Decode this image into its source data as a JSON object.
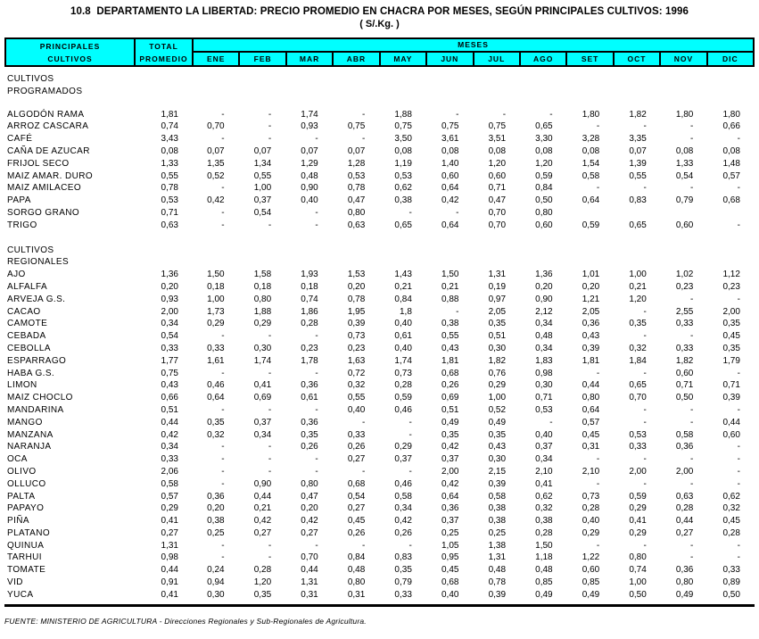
{
  "title": "10.8  DEPARTAMENTO LA LIBERTAD: PRECIO PROMEDIO EN CHACRA POR MESES, SEGÚN PRINCIPALES CULTIVOS: 1996",
  "subtitle": "( S/.Kg. )",
  "colors": {
    "header_bg": "#00FFFF",
    "border": "#000000",
    "text": "#000000"
  },
  "header": {
    "col1": [
      "PRINCIPALES",
      "CULTIVOS"
    ],
    "col2": [
      "TOTAL",
      "PROMEDIO"
    ],
    "meses_label": "MESES",
    "months": [
      "ENE",
      "FEB",
      "MAR",
      "ABR",
      "MAY",
      "JUN",
      "JUL",
      "AGO",
      "SET",
      "OCT",
      "NOV",
      "DIC"
    ]
  },
  "rows": [
    {
      "type": "section",
      "label": "CULTIVOS"
    },
    {
      "type": "section",
      "label": "PROGRAMADOS"
    },
    {
      "type": "spacer",
      "size": "sm"
    },
    {
      "type": "data",
      "label": "ALGODÓN RAMA",
      "total": "1,81",
      "months": [
        "-",
        "-",
        "1,74",
        "-",
        "1,88",
        "-",
        "-",
        "-",
        "1,80",
        "1,82",
        "1,80",
        "1,80"
      ]
    },
    {
      "type": "data",
      "label": "ARROZ CASCARA",
      "total": "0,74",
      "months": [
        "0,70",
        "-",
        "0,93",
        "0,75",
        "0,75",
        "0,75",
        "0,75",
        "0,65",
        "-",
        "-",
        "-",
        "0,66"
      ]
    },
    {
      "type": "data",
      "label": "CAFÉ",
      "total": "3,43",
      "months": [
        "-",
        "-",
        "-",
        "-",
        "3,50",
        "3,61",
        "3,51",
        "3,30",
        "3,28",
        "3,35",
        "-",
        "-"
      ]
    },
    {
      "type": "data",
      "label": "CAÑA DE AZUCAR",
      "total": "0,08",
      "months": [
        "0,07",
        "0,07",
        "0,07",
        "0,07",
        "0,08",
        "0,08",
        "0,08",
        "0,08",
        "0,08",
        "0,07",
        "0,08",
        "0,08"
      ]
    },
    {
      "type": "data",
      "label": "FRIJOL SECO",
      "total": "1,33",
      "months": [
        "1,35",
        "1,34",
        "1,29",
        "1,28",
        "1,19",
        "1,40",
        "1,20",
        "1,20",
        "1,54",
        "1,39",
        "1,33",
        "1,48"
      ]
    },
    {
      "type": "data",
      "label": "MAIZ AMAR. DURO",
      "total": "0,55",
      "months": [
        "0,52",
        "0,55",
        "0,48",
        "0,53",
        "0,53",
        "0,60",
        "0,60",
        "0,59",
        "0,58",
        "0,55",
        "0,54",
        "0,57"
      ]
    },
    {
      "type": "data",
      "label": "MAIZ AMILACEO",
      "total": "0,78",
      "months": [
        "-",
        "1,00",
        "0,90",
        "0,78",
        "0,62",
        "0,64",
        "0,71",
        "0,84",
        "-",
        "-",
        "-",
        "-"
      ]
    },
    {
      "type": "data",
      "label": "PAPA",
      "total": "0,53",
      "months": [
        "0,42",
        "0,37",
        "0,40",
        "0,47",
        "0,38",
        "0,42",
        "0,47",
        "0,50",
        "0,64",
        "0,83",
        "0,79",
        "0,68"
      ]
    },
    {
      "type": "data",
      "label": "SORGO GRANO",
      "total": "0,71",
      "months": [
        "-",
        "0,54",
        "-",
        "0,80",
        "-",
        "-",
        "0,70",
        "0,80",
        "",
        "",
        "",
        ""
      ]
    },
    {
      "type": "data",
      "label": "TRIGO",
      "total": "0,63",
      "months": [
        "-",
        "-",
        "-",
        "0,63",
        "0,65",
        "0,64",
        "0,70",
        "0,60",
        "0,59",
        "0,65",
        "0,60",
        "-"
      ]
    },
    {
      "type": "spacer",
      "size": "lg"
    },
    {
      "type": "section",
      "label": "CULTIVOS"
    },
    {
      "type": "section",
      "label": "REGIONALES"
    },
    {
      "type": "data",
      "label": "AJO",
      "total": "1,36",
      "months": [
        "1,50",
        "1,58",
        "1,93",
        "1,53",
        "1,43",
        "1,50",
        "1,31",
        "1,36",
        "1,01",
        "1,00",
        "1,02",
        "1,12"
      ]
    },
    {
      "type": "data",
      "label": "ALFALFA",
      "total": "0,20",
      "months": [
        "0,18",
        "0,18",
        "0,18",
        "0,20",
        "0,21",
        "0,21",
        "0,19",
        "0,20",
        "0,20",
        "0,21",
        "0,23",
        "0,23"
      ]
    },
    {
      "type": "data",
      "label": "ARVEJA G.S.",
      "total": "0,93",
      "months": [
        "1,00",
        "0,80",
        "0,74",
        "0,78",
        "0,84",
        "0,88",
        "0,97",
        "0,90",
        "1,21",
        "1,20",
        "-",
        "-"
      ]
    },
    {
      "type": "data",
      "label": "CACAO",
      "total": "2,00",
      "months": [
        "1,73",
        "1,88",
        "1,86",
        "1,95",
        "1,8",
        "-",
        "2,05",
        "2,12",
        "2,05",
        "-",
        "2,55",
        "2,00"
      ]
    },
    {
      "type": "data",
      "label": "CAMOTE",
      "total": "0,34",
      "months": [
        "0,29",
        "0,29",
        "0,28",
        "0,39",
        "0,40",
        "0,38",
        "0,35",
        "0,34",
        "0,36",
        "0,35",
        "0,33",
        "0,35"
      ]
    },
    {
      "type": "data",
      "label": "CEBADA",
      "total": "0,54",
      "months": [
        "-",
        "-",
        "-",
        "0,73",
        "0,61",
        "0,55",
        "0,51",
        "0,48",
        "0,43",
        "-",
        "-",
        "0,45"
      ]
    },
    {
      "type": "data",
      "label": "CEBOLLA",
      "total": "0,33",
      "months": [
        "0,33",
        "0,30",
        "0,23",
        "0,23",
        "0,40",
        "0,43",
        "0,30",
        "0,34",
        "0,39",
        "0,32",
        "0,33",
        "0,35"
      ]
    },
    {
      "type": "data",
      "label": "ESPARRAGO",
      "total": "1,77",
      "months": [
        "1,61",
        "1,74",
        "1,78",
        "1,63",
        "1,74",
        "1,81",
        "1,82",
        "1,83",
        "1,81",
        "1,84",
        "1,82",
        "1,79"
      ]
    },
    {
      "type": "data",
      "label": "HABA G.S.",
      "total": "0,75",
      "months": [
        "-",
        "-",
        "-",
        "0,72",
        "0,73",
        "0,68",
        "0,76",
        "0,98",
        "-",
        "-",
        "0,60",
        "-"
      ]
    },
    {
      "type": "data",
      "label": "LIMON",
      "total": "0,43",
      "months": [
        "0,46",
        "0,41",
        "0,36",
        "0,32",
        "0,28",
        "0,26",
        "0,29",
        "0,30",
        "0,44",
        "0,65",
        "0,71",
        "0,71"
      ]
    },
    {
      "type": "data",
      "label": "MAIZ CHOCLO",
      "total": "0,66",
      "months": [
        "0,64",
        "0,69",
        "0,61",
        "0,55",
        "0,59",
        "0,69",
        "1,00",
        "0,71",
        "0,80",
        "0,70",
        "0,50",
        "0,39"
      ]
    },
    {
      "type": "data",
      "label": "MANDARINA",
      "total": "0,51",
      "months": [
        "-",
        "-",
        "-",
        "0,40",
        "0,46",
        "0,51",
        "0,52",
        "0,53",
        "0,64",
        "-",
        "-",
        "-"
      ]
    },
    {
      "type": "data",
      "label": "MANGO",
      "total": "0,44",
      "months": [
        "0,35",
        "0,37",
        "0,36",
        "-",
        "-",
        "0,49",
        "0,49",
        "-",
        "0,57",
        "-",
        "-",
        "0,44"
      ]
    },
    {
      "type": "data",
      "label": "MANZANA",
      "total": "0,42",
      "months": [
        "0,32",
        "0,34",
        "0,35",
        "0,33",
        "-",
        "0,35",
        "0,35",
        "0,40",
        "0,45",
        "0,53",
        "0,58",
        "0,60"
      ]
    },
    {
      "type": "data",
      "label": "NARANJA",
      "total": "0,34",
      "months": [
        "-",
        "-",
        "0,26",
        "0,26",
        "0,29",
        "0,42",
        "0,43",
        "0,37",
        "0,31",
        "0,33",
        "0,36",
        "-"
      ]
    },
    {
      "type": "data",
      "label": "OCA",
      "total": "0,33",
      "months": [
        "-",
        "-",
        "-",
        "0,27",
        "0,37",
        "0,37",
        "0,30",
        "0,34",
        "-",
        "-",
        "-",
        "-"
      ]
    },
    {
      "type": "data",
      "label": "OLIVO",
      "total": "2,06",
      "months": [
        "-",
        "-",
        "-",
        "-",
        "-",
        "2,00",
        "2,15",
        "2,10",
        "2,10",
        "2,00",
        "2,00",
        "-"
      ]
    },
    {
      "type": "data",
      "label": "OLLUCO",
      "total": "0,58",
      "months": [
        "-",
        "0,90",
        "0,80",
        "0,68",
        "0,46",
        "0,42",
        "0,39",
        "0,41",
        "-",
        "-",
        "-",
        "-"
      ]
    },
    {
      "type": "data",
      "label": "PALTA",
      "total": "0,57",
      "months": [
        "0,36",
        "0,44",
        "0,47",
        "0,54",
        "0,58",
        "0,64",
        "0,58",
        "0,62",
        "0,73",
        "0,59",
        "0,63",
        "0,62"
      ]
    },
    {
      "type": "data",
      "label": "PAPAYO",
      "total": "0,29",
      "months": [
        "0,20",
        "0,21",
        "0,20",
        "0,27",
        "0,34",
        "0,36",
        "0,38",
        "0,32",
        "0,28",
        "0,29",
        "0,28",
        "0,32"
      ]
    },
    {
      "type": "data",
      "label": "PIÑA",
      "total": "0,41",
      "months": [
        "0,38",
        "0,42",
        "0,42",
        "0,45",
        "0,42",
        "0,37",
        "0,38",
        "0,38",
        "0,40",
        "0,41",
        "0,44",
        "0,45"
      ]
    },
    {
      "type": "data",
      "label": "PLATANO",
      "total": "0,27",
      "months": [
        "0,25",
        "0,27",
        "0,27",
        "0,26",
        "0,26",
        "0,25",
        "0,25",
        "0,28",
        "0,29",
        "0,29",
        "0,27",
        "0,28"
      ]
    },
    {
      "type": "data",
      "label": "QUINUA",
      "total": "1,31",
      "months": [
        "-",
        "-",
        "-",
        "-",
        "-",
        "1,05",
        "1,38",
        "1,50",
        "-",
        "-",
        "-",
        "-"
      ]
    },
    {
      "type": "data",
      "label": "TARHUI",
      "total": "0,98",
      "months": [
        "-",
        "-",
        "0,70",
        "0,84",
        "0,83",
        "0,95",
        "1,31",
        "1,18",
        "1,22",
        "0,80",
        "-",
        "-"
      ]
    },
    {
      "type": "data",
      "label": "TOMATE",
      "total": "0,44",
      "months": [
        "0,24",
        "0,28",
        "0,44",
        "0,48",
        "0,35",
        "0,45",
        "0,48",
        "0,48",
        "0,60",
        "0,74",
        "0,36",
        "0,33"
      ]
    },
    {
      "type": "data",
      "label": "VID",
      "total": "0,91",
      "months": [
        "0,94",
        "1,20",
        "1,31",
        "0,80",
        "0,79",
        "0,68",
        "0,78",
        "0,85",
        "0,85",
        "1,00",
        "0,80",
        "0,89"
      ]
    },
    {
      "type": "data",
      "label": "YUCA",
      "total": "0,41",
      "months": [
        "0,30",
        "0,35",
        "0,31",
        "0,31",
        "0,33",
        "0,40",
        "0,39",
        "0,49",
        "0,49",
        "0,50",
        "0,49",
        "0,50"
      ]
    }
  ],
  "footer": "FUENTE: MINISTERIO DE AGRICULTURA - Direcciones Regionales y Sub-Regionales de Agricultura."
}
